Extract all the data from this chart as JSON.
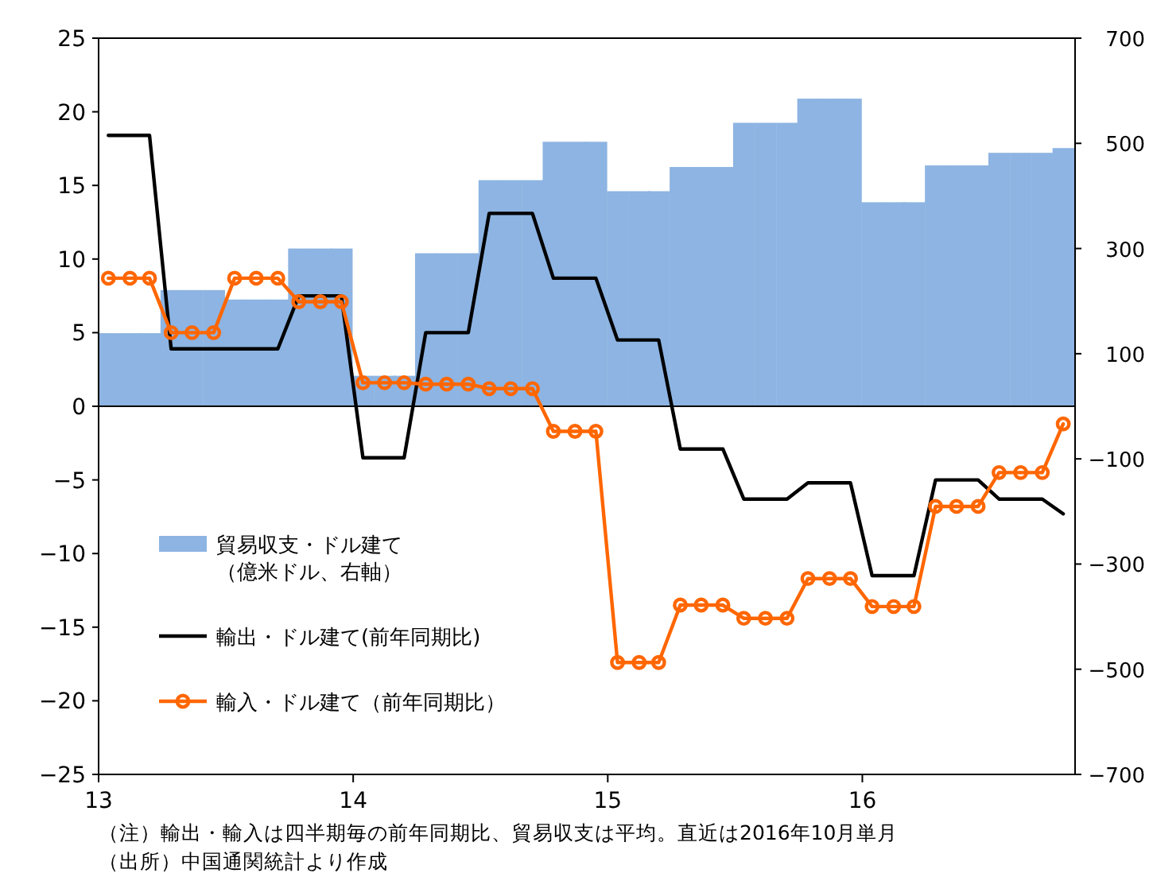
{
  "chart_data": {
    "type": "line",
    "x": [
      "2013-01-15",
      "2013-02-15",
      "2013-03-15",
      "2013-04-15",
      "2013-05-15",
      "2013-06-15",
      "2013-07-15",
      "2013-08-15",
      "2013-09-15",
      "2013-10-15",
      "2013-11-15",
      "2013-12-15",
      "2014-01-15",
      "2014-02-15",
      "2014-03-15",
      "2014-04-15",
      "2014-05-15",
      "2014-06-15",
      "2014-07-15",
      "2014-08-15",
      "2014-09-15",
      "2014-10-15",
      "2014-11-15",
      "2014-12-15",
      "2015-01-15",
      "2015-02-15",
      "2015-03-15",
      "2015-04-15",
      "2015-05-15",
      "2015-06-15",
      "2015-07-15",
      "2015-08-15",
      "2015-09-15",
      "2015-10-15",
      "2015-11-15",
      "2015-12-15",
      "2016-01-15",
      "2016-02-15",
      "2016-03-15",
      "2016-04-15",
      "2016-05-15",
      "2016-06-15",
      "2016-07-15",
      "2016-08-15",
      "2016-09-15",
      "2016-10-15"
    ],
    "series": [
      {
        "name": "貿易収支・ドル建て（億米ドル、右軸）",
        "type": "bar",
        "axis": "y2",
        "color": "#8db4e2",
        "values": [
          139,
          139,
          139,
          221,
          221,
          221,
          203,
          203,
          203,
          300,
          300,
          300,
          58,
          58,
          58,
          291,
          291,
          291,
          430,
          430,
          430,
          503,
          503,
          503,
          409,
          409,
          409,
          455,
          455,
          455,
          539,
          539,
          539,
          585,
          585,
          585,
          388,
          388,
          388,
          458,
          458,
          458,
          482,
          482,
          482,
          491
        ]
      },
      {
        "name": "輸出・ドル建て(前年同期比)",
        "marker": "none",
        "color": "#000000",
        "values": [
          18.4,
          18.4,
          18.4,
          3.9,
          3.9,
          3.9,
          3.9,
          3.9,
          3.9,
          7.5,
          7.5,
          7.5,
          -3.5,
          -3.5,
          -3.5,
          5.0,
          5.0,
          5.0,
          13.1,
          13.1,
          13.1,
          8.7,
          8.7,
          8.7,
          4.5,
          4.5,
          4.5,
          -2.9,
          -2.9,
          -2.9,
          -6.3,
          -6.3,
          -6.3,
          -5.2,
          -5.2,
          -5.2,
          -11.5,
          -11.5,
          -11.5,
          -5.0,
          -5.0,
          -5.0,
          -6.3,
          -6.3,
          -6.3,
          -7.3
        ]
      },
      {
        "name": "輸入・ドル建て（前年同期比）",
        "marker": "circle",
        "color": "#ff6600",
        "values": [
          8.7,
          8.7,
          8.7,
          5.0,
          5.0,
          5.0,
          8.7,
          8.7,
          8.7,
          7.1,
          7.1,
          7.1,
          1.6,
          1.6,
          1.6,
          1.5,
          1.5,
          1.5,
          1.2,
          1.2,
          1.2,
          -1.7,
          -1.7,
          -1.7,
          -17.4,
          -17.4,
          -17.4,
          -13.5,
          -13.5,
          -13.5,
          -14.4,
          -14.4,
          -14.4,
          -11.7,
          -11.7,
          -11.7,
          -13.6,
          -13.6,
          -13.6,
          -6.8,
          -6.8,
          -6.8,
          -4.5,
          -4.5,
          -4.5,
          -1.2
        ]
      }
    ],
    "xlim": [
      "2013-01-01",
      "2016-11-01"
    ],
    "xticks": [
      {
        "value": "2013-01-01",
        "label": "13"
      },
      {
        "value": "2014-01-01",
        "label": "14"
      },
      {
        "value": "2015-01-01",
        "label": "15"
      },
      {
        "value": "2016-01-01",
        "label": "16"
      }
    ],
    "ylim": [
      -25,
      25
    ],
    "yticks": [
      -25,
      -20,
      -15,
      -10,
      -5,
      0,
      5,
      10,
      15,
      20,
      25
    ],
    "y2lim": [
      -700,
      700
    ],
    "y2ticks": [
      -700,
      -500,
      -300,
      -100,
      100,
      300,
      500,
      700
    ],
    "ref_lines": [
      {
        "axis": "y",
        "value": 0,
        "color": "#000000"
      }
    ],
    "legend": "left",
    "annotations": [
      "（注）輸出・輸入は四半期毎の前年同期比、貿易収支は平均。直近は2016年10月単月",
      "（出所）中国通関統計より作成"
    ]
  }
}
